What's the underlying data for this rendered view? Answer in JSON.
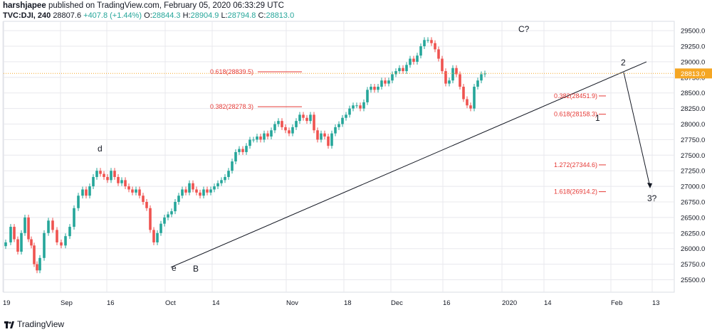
{
  "header": {
    "username": "harshjapee",
    "published_text": "published on TradingView.com, February 05, 2020 06:33:29 UTC",
    "symbol": "TVC:DJI, 240",
    "last": "28807.6",
    "change": "+407.8 (+1.44%)",
    "o_label": "O:",
    "o_value": "28844.3",
    "h_label": "H:",
    "h_value": "28904.9",
    "l_label": "L:",
    "l_value": "28794.8",
    "c_label": "C:",
    "c_value": "28813.0"
  },
  "footer": {
    "brand": "TradingView"
  },
  "colors": {
    "up": "#26a69a",
    "down": "#ef5350",
    "fib": "#e53935",
    "price_line": "#f5a623",
    "price_label_bg": "#f5a623",
    "grid": "#e8e8ee",
    "trendline": "#131722"
  },
  "chart_data": {
    "type": "candlestick",
    "symbol": "TVC:DJI",
    "interval": "240",
    "ylim": [
      25300,
      29650
    ],
    "y_ticks": [
      "25500.0",
      "25750.0",
      "26000.0",
      "26250.0",
      "26500.0",
      "26750.0",
      "27000.0",
      "27250.0",
      "27500.0",
      "27750.0",
      "28000.0",
      "28250.0",
      "28500.0",
      "28750.0",
      "29000.0",
      "29250.0",
      "29500.0"
    ],
    "x_tick_labels": [
      "19",
      "Sep",
      "16",
      "Oct",
      "14",
      "Nov",
      "18",
      "Dec",
      "16",
      "2020",
      "14",
      "Feb",
      "13"
    ],
    "last_price_label": "28813.0",
    "last_price": 28813.0,
    "closes": [
      26100,
      26350,
      26150,
      25950,
      26250,
      26500,
      26150,
      26050,
      25750,
      25650,
      25850,
      26250,
      26450,
      26300,
      26100,
      26050,
      26200,
      26350,
      26650,
      26850,
      26950,
      26850,
      27000,
      27150,
      27250,
      27200,
      27150,
      27100,
      27250,
      27150,
      27050,
      27100,
      27000,
      26950,
      26900,
      26950,
      26850,
      26750,
      26650,
      26300,
      26100,
      26250,
      26400,
      26500,
      26550,
      26600,
      26750,
      26850,
      26950,
      26900,
      27050,
      26950,
      26900,
      26850,
      26950,
      26900,
      26950,
      27000,
      27050,
      27100,
      27150,
      27250,
      27400,
      27550,
      27600,
      27550,
      27650,
      27750,
      27750,
      27800,
      27750,
      27850,
      27800,
      27900,
      28000,
      28050,
      27950,
      27900,
      27850,
      27950,
      28050,
      28150,
      28100,
      28050,
      28150,
      27900,
      27750,
      27850,
      27800,
      27650,
      27850,
      27950,
      28000,
      28100,
      28150,
      28250,
      28300,
      28300,
      28250,
      28350,
      28550,
      28600,
      28550,
      28600,
      28700,
      28650,
      28700,
      28800,
      28850,
      28900,
      28850,
      28950,
      29050,
      29000,
      29100,
      29250,
      29350,
      29350,
      29300,
      29200,
      29050,
      28850,
      28650,
      28700,
      28900,
      28800,
      28600,
      28400,
      28300,
      28250,
      28600,
      28700,
      28800,
      28813
    ],
    "x_positions": [
      8,
      15,
      20,
      25,
      30,
      35,
      40,
      44,
      48,
      52,
      56,
      62,
      68,
      74,
      80,
      86,
      92,
      98,
      104,
      110,
      116,
      121,
      126,
      131,
      136,
      141,
      146,
      151,
      156,
      161,
      166,
      171,
      176,
      181,
      186,
      191,
      196,
      201,
      206,
      211,
      216,
      221,
      226,
      231,
      236,
      241,
      246,
      251,
      256,
      261,
      266,
      271,
      276,
      281,
      286,
      291,
      296,
      301,
      306,
      311,
      316,
      321,
      326,
      331,
      336,
      341,
      346,
      351,
      356,
      361,
      366,
      371,
      376,
      381,
      386,
      391,
      396,
      401,
      406,
      411,
      416,
      421,
      426,
      431,
      436,
      441,
      446,
      451,
      456,
      461,
      466,
      471,
      476,
      481,
      486,
      491,
      496,
      501,
      506,
      511,
      516,
      521,
      526,
      531,
      536,
      541,
      546,
      551,
      556,
      561,
      566,
      571,
      576,
      581,
      586,
      591,
      596,
      601,
      606,
      611,
      616,
      621,
      626,
      631,
      636,
      641,
      646,
      651,
      656,
      661,
      666,
      671,
      676,
      681
    ],
    "trendline": {
      "from": [
        25700,
        "Oct 3"
      ],
      "to": [
        29000,
        "Feb 5"
      ]
    },
    "fib_levels": [
      {
        "label": "0.618(28839.5)",
        "value": 28839.5
      },
      {
        "label": "0.382(28278.3)",
        "value": 28278.3
      },
      {
        "label": "0.382(28451.9)",
        "value": 28451.9
      },
      {
        "label": "0.618(28158.3)",
        "value": 28158.3
      },
      {
        "label": "1.272(27344.6)",
        "value": 27344.6
      },
      {
        "label": "1.618(26914.2)",
        "value": 26914.2
      }
    ],
    "wave_labels": [
      "d",
      "e",
      "B",
      "C?",
      "2",
      "1",
      "3?"
    ]
  }
}
